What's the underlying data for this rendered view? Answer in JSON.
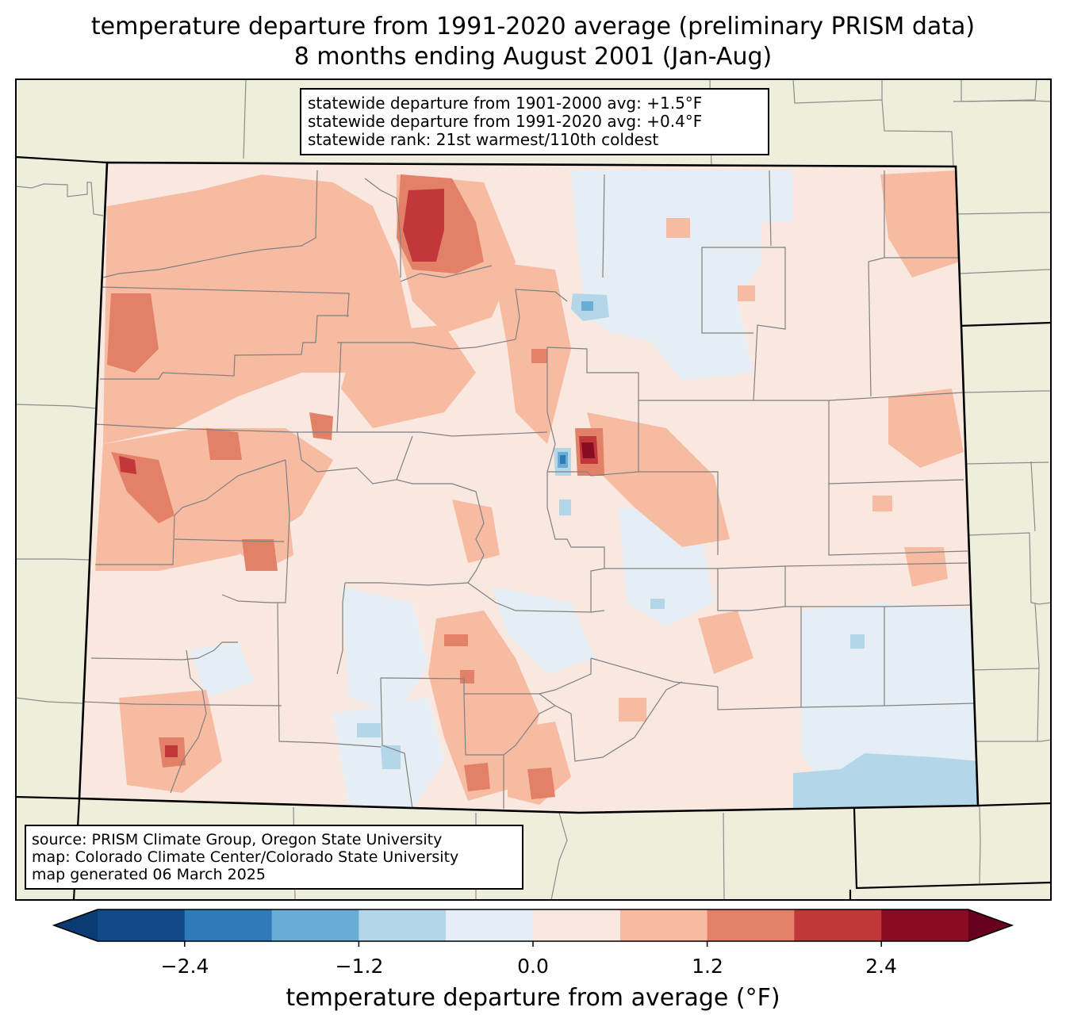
{
  "title": {
    "line1": "temperature departure from 1991-2020 average (preliminary PRISM data)",
    "line2": "8 months ending August 2001 (Jan-Aug)"
  },
  "stats": {
    "line1": "statewide departure from 1901-2000 avg: +1.5°F",
    "line2": "statewide departure from 1991-2020 avg: +0.4°F",
    "line3": "statewide rank: 21st warmest/110th coldest"
  },
  "source": {
    "line1": "source: PRISM Climate Group, Oregon State University",
    "line2": "map: Colorado Climate Center/Colorado State University",
    "line3": "map generated 06 March 2025"
  },
  "colorbar": {
    "label": "temperature departure from average (°F)",
    "ticks": [
      "−2.4",
      "−1.2",
      "0.0",
      "1.2",
      "2.4"
    ],
    "levels": [
      -3.0,
      -2.4,
      -1.8,
      -1.2,
      -0.6,
      0.0,
      0.6,
      1.2,
      1.8,
      2.4,
      3.0
    ],
    "colors": [
      "#0a3b72",
      "#124a87",
      "#2f7ab8",
      "#6aadd4",
      "#b3d6e8",
      "#e5eef5",
      "#f9e8e0",
      "#f7bba2",
      "#e28068",
      "#c1373a",
      "#870c24",
      "#67001f"
    ]
  },
  "map_colors": {
    "background": "#efeedd",
    "state_base": "#f9e8e0"
  }
}
